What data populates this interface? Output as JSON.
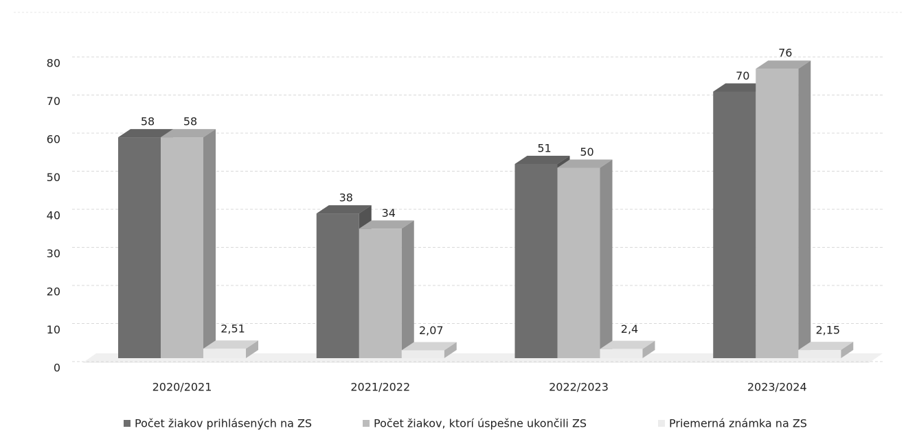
{
  "chart_data": {
    "type": "bar3d",
    "categories": [
      "2020/2021",
      "2021/2022",
      "2022/2023",
      "2023/2024"
    ],
    "series": [
      {
        "name": "Počet žiakov prihlásených na ZS",
        "color": "#6e6e6e",
        "values": [
          58,
          38,
          51,
          70
        ]
      },
      {
        "name": "Počet žiakov, ktorí úspešne ukončili ZS",
        "color": "#bcbcbc",
        "values": [
          58,
          34,
          50,
          76
        ]
      },
      {
        "name": "Priemerná známka na ZS",
        "color": "#ececec",
        "values": [
          2.51,
          2.07,
          2.4,
          2.15
        ],
        "value_labels": [
          "2,51",
          "2,07",
          "2,4",
          "2,15"
        ]
      }
    ],
    "ylim": [
      0,
      80
    ],
    "yticks": [
      0,
      10,
      20,
      30,
      40,
      50,
      60,
      70,
      80
    ],
    "grid": true,
    "legend": "bottom"
  }
}
